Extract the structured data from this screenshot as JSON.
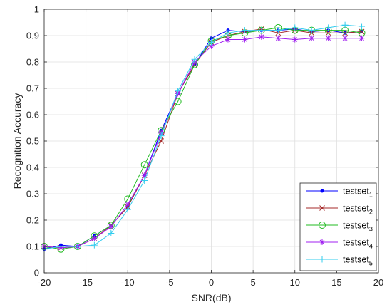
{
  "chart_data": {
    "type": "line",
    "title": "",
    "xlabel": "SNR(dB)",
    "ylabel": "Recognition Accuracy",
    "xlim": [
      -20,
      20
    ],
    "ylim": [
      0,
      1
    ],
    "x_ticks": [
      "-20",
      "-15",
      "-10",
      "-5",
      "0",
      "5",
      "10",
      "15",
      "20"
    ],
    "y_ticks": [
      "0",
      "0.1",
      "0.2",
      "0.3",
      "0.4",
      "0.5",
      "0.6",
      "0.7",
      "0.8",
      "0.9",
      "1"
    ],
    "grid": true,
    "legend_position": "bottom-right",
    "x": [
      -20,
      -18,
      -16,
      -14,
      -12,
      -10,
      -8,
      -6,
      -4,
      -2,
      0,
      2,
      4,
      6,
      8,
      10,
      12,
      14,
      16,
      18
    ],
    "series": [
      {
        "name": "testset",
        "subscript": "1",
        "color": "#0000ff",
        "marker": "dot",
        "values": [
          0.09,
          0.105,
          0.1,
          0.14,
          0.18,
          0.25,
          0.37,
          0.54,
          0.68,
          0.79,
          0.89,
          0.92,
          0.915,
          0.92,
          0.92,
          0.925,
          0.915,
          0.92,
          0.91,
          0.915
        ]
      },
      {
        "name": "testset",
        "subscript": "2",
        "color": "#a52a2a",
        "marker": "x",
        "values": [
          0.1,
          0.095,
          0.1,
          0.13,
          0.18,
          0.25,
          0.37,
          0.5,
          0.68,
          0.79,
          0.875,
          0.9,
          0.915,
          0.925,
          0.91,
          0.92,
          0.91,
          0.91,
          0.91,
          0.915
        ]
      },
      {
        "name": "testset",
        "subscript": "3",
        "color": "#22bb22",
        "marker": "circle",
        "values": [
          0.1,
          0.09,
          0.1,
          0.14,
          0.18,
          0.28,
          0.41,
          0.54,
          0.65,
          0.79,
          0.88,
          0.9,
          0.91,
          0.92,
          0.93,
          0.92,
          0.92,
          0.92,
          0.92,
          0.91
        ]
      },
      {
        "name": "testset",
        "subscript": "4",
        "color": "#a020f0",
        "marker": "asterisk",
        "values": [
          0.1,
          0.095,
          0.1,
          0.13,
          0.175,
          0.26,
          0.37,
          0.53,
          0.68,
          0.8,
          0.86,
          0.885,
          0.885,
          0.895,
          0.89,
          0.885,
          0.89,
          0.89,
          0.89,
          0.89
        ]
      },
      {
        "name": "testset",
        "subscript": "5",
        "color": "#33ccee",
        "marker": "plus",
        "values": [
          0.09,
          0.1,
          0.1,
          0.105,
          0.15,
          0.24,
          0.35,
          0.52,
          0.69,
          0.81,
          0.875,
          0.91,
          0.92,
          0.92,
          0.92,
          0.93,
          0.92,
          0.93,
          0.94,
          0.935
        ]
      }
    ]
  }
}
